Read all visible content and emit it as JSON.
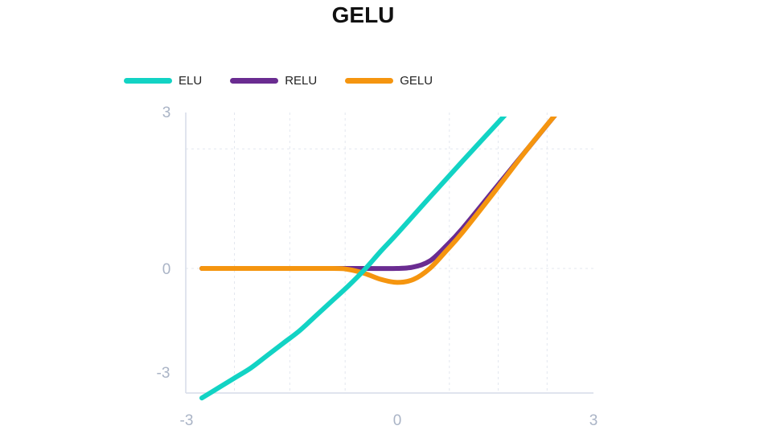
{
  "chart_data": {
    "type": "line",
    "title": "GELU",
    "xlabel": "",
    "ylabel": "",
    "xlim": [
      -3,
      3
    ],
    "ylim": [
      -3,
      3
    ],
    "x_ticks": [
      "-3",
      "0",
      "3"
    ],
    "y_ticks": [
      "3",
      "0",
      "-3"
    ],
    "grid": true,
    "legend_position": "top-left",
    "series": [
      {
        "name": "ELU",
        "color": "#12d3c4",
        "x": [
          -3,
          -2.75,
          -2.5,
          -2.25,
          -2,
          -1.75,
          -1.5,
          -1.25,
          -1,
          -0.75,
          -0.5,
          -0.25,
          0,
          0.5,
          1,
          1.5,
          2,
          2.5,
          3
        ],
        "y": [
          -2.6,
          -2.4,
          -2.2,
          -2.0,
          -1.75,
          -1.5,
          -1.25,
          -0.95,
          -0.65,
          -0.35,
          -0.02,
          0.35,
          0.7,
          1.43,
          2.15,
          2.86,
          3.57,
          4.29,
          5.0
        ]
      },
      {
        "name": "RELU",
        "color": "#6a2c91",
        "x": [
          -3,
          -2,
          -1,
          -0.5,
          0,
          0.25,
          0.5,
          0.75,
          1,
          1.5,
          2,
          2.5,
          3
        ],
        "y": [
          0,
          0,
          0,
          0,
          0,
          0.03,
          0.15,
          0.45,
          0.8,
          1.6,
          2.4,
          3.2,
          4.0
        ]
      },
      {
        "name": "GELU",
        "color": "#f5950f",
        "x": [
          -3,
          -2,
          -1,
          -0.75,
          -0.5,
          -0.25,
          0,
          0.25,
          0.5,
          0.75,
          1,
          1.5,
          2,
          2.5,
          3
        ],
        "y": [
          0,
          0,
          0,
          -0.02,
          -0.1,
          -0.22,
          -0.28,
          -0.22,
          0.0,
          0.35,
          0.72,
          1.55,
          2.4,
          3.2,
          4.0
        ]
      }
    ]
  }
}
